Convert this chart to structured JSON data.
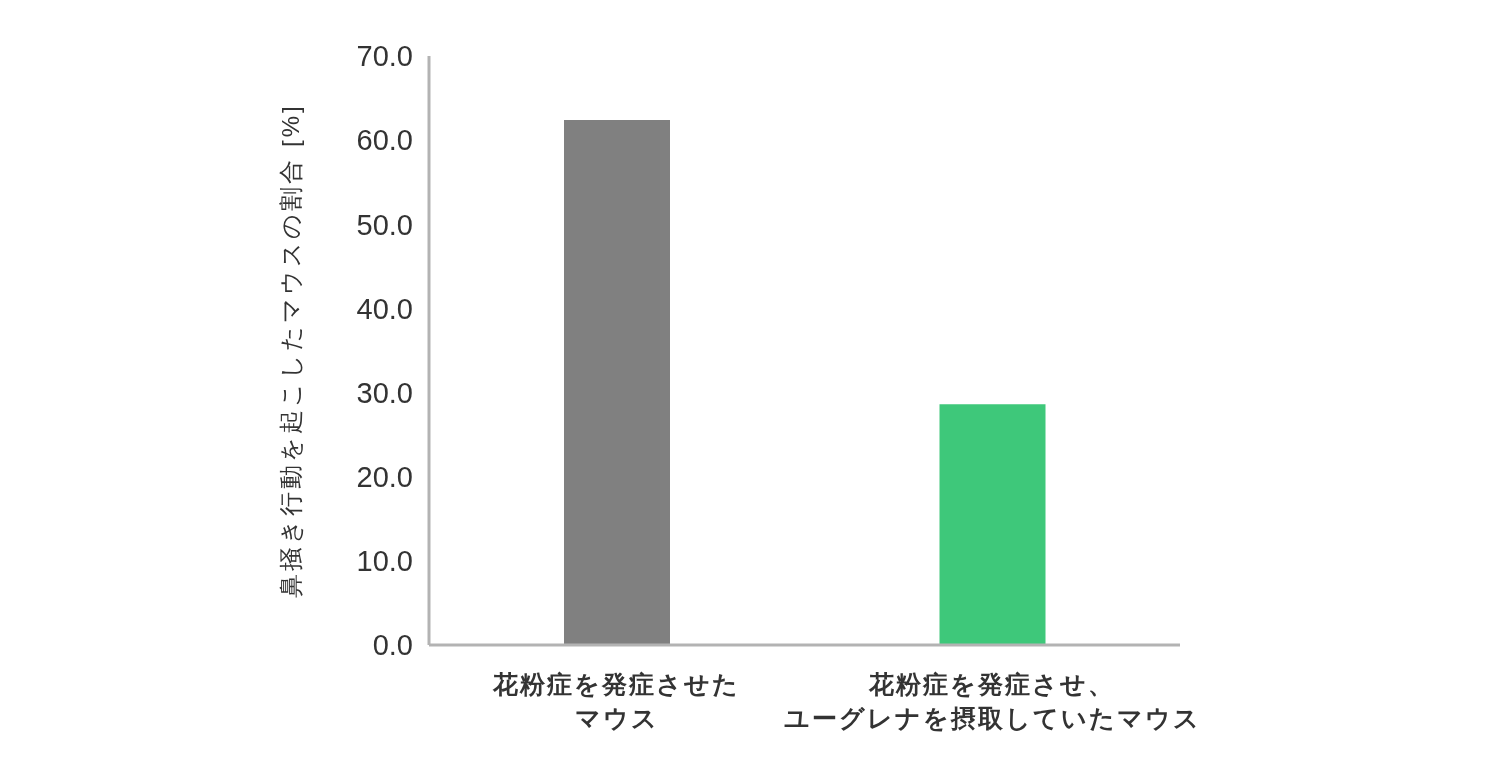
{
  "chart_data": {
    "type": "bar",
    "ylabel": "鼻掻き行動を起こしたマウスの割合 [%]",
    "categories": [
      "花粉症を発症させたマウス",
      "花粉症を発症させ、ユーグレナを摂取していたマウス"
    ],
    "values": [
      62.4,
      28.6
    ],
    "colors": [
      "#808080",
      "#3ec87a"
    ],
    "ylim": [
      0,
      70
    ],
    "yticks": [
      {
        "value": 0,
        "label": "0.0"
      },
      {
        "value": 10,
        "label": "10.0"
      },
      {
        "value": 20,
        "label": "20.0"
      },
      {
        "value": 30,
        "label": "30.0"
      },
      {
        "value": 40,
        "label": "40.0"
      },
      {
        "value": 50,
        "label": "50.0"
      },
      {
        "value": 60,
        "label": "60.0"
      },
      {
        "value": 70,
        "label": "70.0"
      }
    ]
  }
}
